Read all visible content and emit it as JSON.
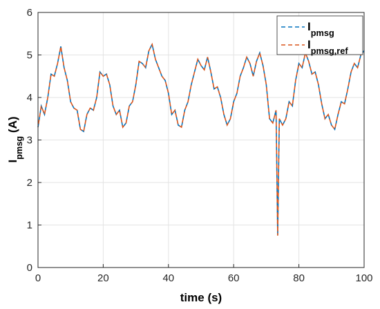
{
  "chart_data": {
    "type": "line",
    "x_label": "time (s)",
    "y_label": "I_pmsg (A)",
    "x": [
      0,
      1,
      2,
      3,
      4,
      5,
      6,
      7,
      8,
      9,
      10,
      11,
      12,
      13,
      14,
      15,
      16,
      17,
      18,
      19,
      20,
      21,
      22,
      23,
      24,
      25,
      26,
      27,
      28,
      29,
      30,
      31,
      32,
      33,
      34,
      35,
      36,
      37,
      38,
      39,
      40,
      41,
      42,
      43,
      44,
      45,
      46,
      47,
      48,
      49,
      50,
      51,
      52,
      53,
      54,
      55,
      56,
      57,
      58,
      59,
      60,
      61,
      62,
      63,
      64,
      65,
      66,
      67,
      68,
      69,
      70,
      71,
      72,
      73,
      73.5,
      74,
      75,
      76,
      77,
      78,
      79,
      80,
      81,
      82,
      83,
      84,
      85,
      86,
      87,
      88,
      89,
      90,
      91,
      92,
      93,
      94,
      95,
      96,
      97,
      98,
      99,
      100
    ],
    "series": [
      {
        "name": "I_pmsg",
        "color": "#0072bd",
        "values": [
          3.3,
          3.8,
          3.6,
          4.0,
          4.55,
          4.5,
          4.8,
          5.2,
          4.7,
          4.4,
          3.9,
          3.75,
          3.7,
          3.25,
          3.2,
          3.6,
          3.75,
          3.7,
          4.0,
          4.6,
          4.5,
          4.55,
          4.3,
          3.8,
          3.6,
          3.7,
          3.3,
          3.4,
          3.8,
          3.9,
          4.3,
          4.85,
          4.8,
          4.7,
          5.1,
          5.25,
          4.9,
          4.7,
          4.5,
          4.4,
          4.1,
          3.6,
          3.7,
          3.35,
          3.3,
          3.7,
          3.9,
          4.3,
          4.6,
          4.9,
          4.75,
          4.65,
          4.95,
          4.6,
          4.2,
          4.25,
          4.0,
          3.6,
          3.35,
          3.5,
          3.9,
          4.1,
          4.5,
          4.7,
          4.95,
          4.8,
          4.5,
          4.85,
          5.05,
          4.75,
          4.3,
          3.5,
          3.4,
          3.7,
          0.75,
          3.5,
          3.35,
          3.5,
          3.9,
          3.8,
          4.4,
          4.8,
          4.7,
          5.05,
          4.85,
          4.55,
          4.6,
          4.3,
          3.85,
          3.5,
          3.6,
          3.35,
          3.25,
          3.6,
          3.9,
          3.85,
          4.2,
          4.6,
          4.8,
          4.7,
          5.0,
          5.1
        ]
      },
      {
        "name": "I_pmsg,ref",
        "color": "#d95319",
        "values": [
          3.3,
          3.8,
          3.6,
          4.0,
          4.55,
          4.5,
          4.8,
          5.2,
          4.7,
          4.4,
          3.9,
          3.75,
          3.7,
          3.25,
          3.2,
          3.6,
          3.75,
          3.7,
          4.0,
          4.6,
          4.5,
          4.55,
          4.3,
          3.8,
          3.6,
          3.7,
          3.3,
          3.4,
          3.8,
          3.9,
          4.3,
          4.85,
          4.8,
          4.7,
          5.1,
          5.25,
          4.9,
          4.7,
          4.5,
          4.4,
          4.1,
          3.6,
          3.7,
          3.35,
          3.3,
          3.7,
          3.9,
          4.3,
          4.6,
          4.9,
          4.75,
          4.65,
          4.95,
          4.6,
          4.2,
          4.25,
          4.0,
          3.6,
          3.35,
          3.5,
          3.9,
          4.1,
          4.5,
          4.7,
          4.95,
          4.8,
          4.5,
          4.85,
          5.05,
          4.75,
          4.3,
          3.5,
          3.4,
          3.7,
          0.75,
          3.5,
          3.35,
          3.5,
          3.9,
          3.8,
          4.4,
          4.8,
          4.7,
          5.05,
          4.85,
          4.55,
          4.6,
          4.3,
          3.85,
          3.5,
          3.6,
          3.35,
          3.25,
          3.6,
          3.9,
          3.85,
          4.2,
          4.6,
          4.8,
          4.7,
          5.0,
          5.1
        ]
      }
    ],
    "xlim": [
      0,
      100
    ],
    "xticks": [
      0,
      20,
      40,
      60,
      80,
      100
    ],
    "ylim": [
      0,
      6
    ],
    "yticks": [
      0,
      1,
      2,
      3,
      4,
      5,
      6
    ],
    "grid": true,
    "legend": "upper right"
  }
}
